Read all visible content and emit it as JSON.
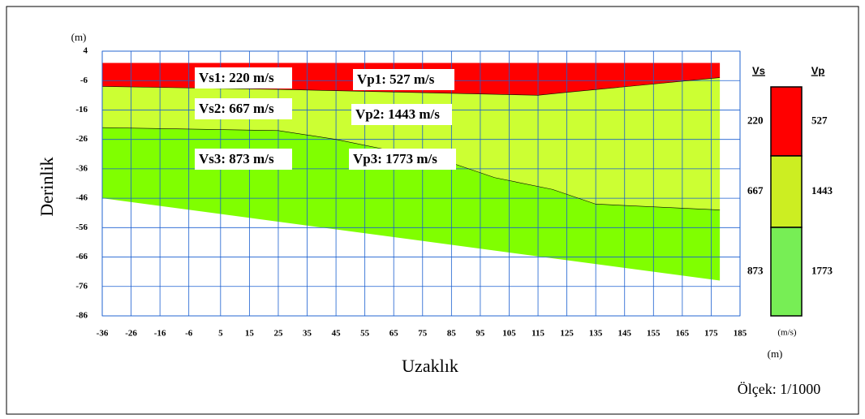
{
  "chart_data": {
    "type": "layers",
    "x_label": "Uzaklık",
    "y_label": "Derinlik",
    "x_unit": "(m)",
    "y_unit": "(m)",
    "scale_note": "Ölçek: 1/1000",
    "xlim": [
      -36,
      185
    ],
    "ylim": [
      -86,
      4
    ],
    "xticks": [
      -36,
      -26,
      -16,
      -6,
      5,
      15,
      25,
      35,
      45,
      55,
      65,
      75,
      85,
      95,
      105,
      115,
      125,
      135,
      145,
      155,
      165,
      175,
      185
    ],
    "yticks": [
      4,
      -6,
      -16,
      -26,
      -36,
      -46,
      -56,
      -66,
      -76,
      -86
    ],
    "grid": true,
    "boundaries": [
      {
        "x": [
          -36,
          178
        ],
        "y": [
          0,
          0
        ]
      },
      {
        "x": [
          -36,
          25,
          115,
          125,
          178
        ],
        "y": [
          -8,
          -9,
          -11,
          -10,
          -5
        ]
      },
      {
        "x": [
          -36,
          25,
          45,
          85,
          100,
          120,
          135,
          178
        ],
        "y": [
          -22,
          -23,
          -26,
          -34,
          -39,
          -43,
          -48,
          -50
        ]
      },
      {
        "x": [
          -36,
          178
        ],
        "y": [
          -46,
          -74
        ]
      }
    ],
    "layers": [
      {
        "color": "#ff0000",
        "legend_color": "#ff0000",
        "vs": 220,
        "vp": 527,
        "label_vs": "Vs1: 220 m/s",
        "label_vp": "Vp1: 527 m/s"
      },
      {
        "color": "#ccff33",
        "legend_color": "#ccee22",
        "vs": 667,
        "vp": 1443,
        "label_vs": "Vs2: 667 m/s",
        "label_vp": "Vp2: 1443 m/s"
      },
      {
        "color": "#80ff00",
        "legend_color": "#77ee55",
        "vs": 873,
        "vp": 1773,
        "label_vs": "Vs3: 873 m/s",
        "label_vp": "Vp3: 1773 m/s"
      }
    ],
    "legend_vs_title": "Vs",
    "legend_vp_title": "Vp",
    "legend_unit": "(m/s)"
  }
}
